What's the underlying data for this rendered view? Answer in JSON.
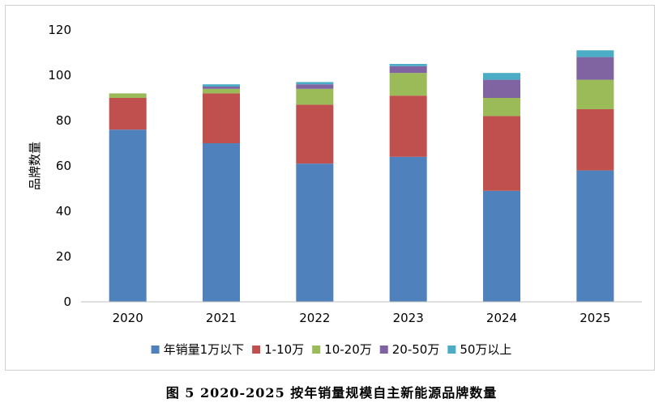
{
  "caption": "图 5 2020-2025 按年销量规模自主新能源品牌数量",
  "chart_data": {
    "type": "bar",
    "stacked": true,
    "title": "",
    "xlabel": "",
    "ylabel": "品牌数量",
    "ylim": [
      0,
      120
    ],
    "yticks": [
      0,
      20,
      40,
      60,
      80,
      100,
      120
    ],
    "categories": [
      "2020",
      "2021",
      "2022",
      "2023",
      "2024",
      "2025"
    ],
    "legend_position": "bottom",
    "grid": false,
    "series": [
      {
        "name": "年销量1万以下",
        "color": "#4f81bd",
        "values": [
          76,
          70,
          61,
          64,
          49,
          58
        ]
      },
      {
        "name": "1-10万",
        "color": "#c0504d",
        "values": [
          14,
          22,
          26,
          27,
          33,
          27
        ]
      },
      {
        "name": "10-20万",
        "color": "#9bbb59",
        "values": [
          2,
          2,
          7,
          10,
          8,
          13
        ]
      },
      {
        "name": "20-50万",
        "color": "#8064a2",
        "values": [
          0,
          1,
          2,
          3,
          8,
          10
        ]
      },
      {
        "name": "50万以上",
        "color": "#4bacc6",
        "values": [
          0,
          1,
          1,
          1,
          3,
          3
        ]
      }
    ]
  }
}
